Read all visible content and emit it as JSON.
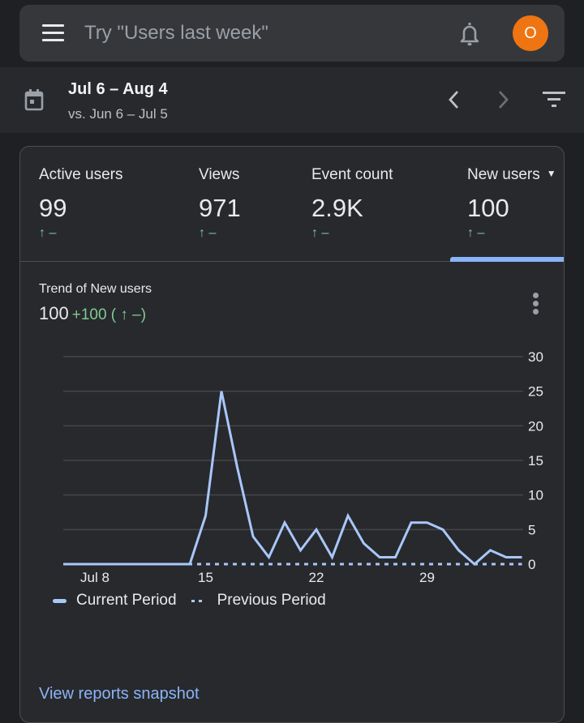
{
  "topbar": {
    "search_placeholder": "Try \"Users last week\"",
    "avatar_initial": "O",
    "avatar_color": "#ee7512"
  },
  "date_range": {
    "current": "Jul 6 – Aug 4",
    "comparison": "vs. Jun 6 – Jul 5"
  },
  "tabs": [
    {
      "label": "Active users",
      "value": "99",
      "delta": "↑ –"
    },
    {
      "label": "Views",
      "value": "971",
      "delta": "↑ –"
    },
    {
      "label": "Event count",
      "value": "2.9K",
      "delta": "↑ –"
    },
    {
      "label": "New users",
      "value": "100",
      "delta": "↑ –",
      "selected": true
    }
  ],
  "trend": {
    "title": "Trend of New users",
    "value": "100",
    "delta": "+100 ( ↑ –)"
  },
  "legend": {
    "current": "Current Period",
    "previous": "Previous Period"
  },
  "footer": {
    "link": "View reports snapshot"
  },
  "colors": {
    "accent": "#8ab4f8",
    "line": "#a8c7fa",
    "positive": "#81c995",
    "background": "#1f2023",
    "card": "#28292d"
  },
  "chart_data": {
    "type": "line",
    "title": "Trend of New users",
    "x": [
      "Jul 6",
      "Jul 7",
      "Jul 8",
      "Jul 9",
      "Jul 10",
      "Jul 11",
      "Jul 12",
      "Jul 13",
      "Jul 14",
      "Jul 15",
      "Jul 16",
      "Jul 17",
      "Jul 18",
      "Jul 19",
      "Jul 20",
      "Jul 21",
      "Jul 22",
      "Jul 23",
      "Jul 24",
      "Jul 25",
      "Jul 26",
      "Jul 27",
      "Jul 28",
      "Jul 29",
      "Jul 30",
      "Jul 31",
      "Aug 1",
      "Aug 2",
      "Aug 3",
      "Aug 4"
    ],
    "x_tick_labels": [
      "Jul 8",
      "15",
      "22",
      "29"
    ],
    "series": [
      {
        "name": "Current Period",
        "style": "solid",
        "values": [
          0,
          0,
          0,
          0,
          0,
          0,
          0,
          0,
          0,
          7,
          25,
          14,
          4,
          1,
          6,
          2,
          5,
          1,
          7,
          3,
          1,
          1,
          6,
          6,
          5,
          2,
          0,
          2,
          1,
          1
        ]
      },
      {
        "name": "Previous Period",
        "style": "dashed",
        "values": [
          0,
          0,
          0,
          0,
          0,
          0,
          0,
          0,
          0,
          0,
          0,
          0,
          0,
          0,
          0,
          0,
          0,
          0,
          0,
          0,
          0,
          0,
          0,
          0,
          0,
          0,
          0,
          0,
          0,
          0
        ]
      }
    ],
    "y_ticks": [
      0,
      5,
      10,
      15,
      20,
      25,
      30
    ],
    "ylim": [
      0,
      30
    ],
    "y_axis_position": "right",
    "grid": true,
    "legend_position": "bottom-left",
    "xlabel": "",
    "ylabel": ""
  }
}
